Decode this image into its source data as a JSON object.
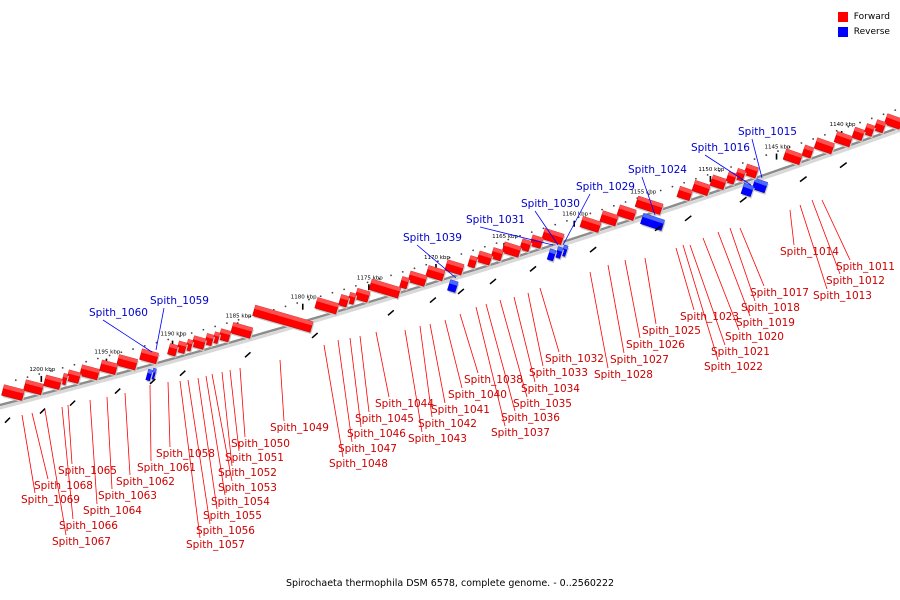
{
  "colors": {
    "forward": "#ff0000",
    "reverse": "#0000ff",
    "backbone": "#8c8c8c"
  },
  "legend": [
    {
      "label": "Forward",
      "color": "#ff0000"
    },
    {
      "label": "Reverse",
      "color": "#0000ff"
    }
  ],
  "caption": "Spirochaeta thermophila DSM 6578, complete genome. - 0..2560222",
  "ticks": [
    "1200 kbp",
    "1195 kbp",
    "1190 kbp",
    "1185 kbp",
    "1180 kbp",
    "1175 kbp",
    "1170 kbp",
    "1165 kbp",
    "1160 kbp",
    "1155 kbp",
    "1150 kbp",
    "1145 kbp",
    "1140 kbp"
  ],
  "genes": [
    {
      "name": "Spith_1011",
      "strand": "forward"
    },
    {
      "name": "Spith_1012",
      "strand": "forward"
    },
    {
      "name": "Spith_1013",
      "strand": "forward"
    },
    {
      "name": "Spith_1014",
      "strand": "forward"
    },
    {
      "name": "Spith_1015",
      "strand": "reverse"
    },
    {
      "name": "Spith_1016",
      "strand": "reverse"
    },
    {
      "name": "Spith_1017",
      "strand": "forward"
    },
    {
      "name": "Spith_1018",
      "strand": "forward"
    },
    {
      "name": "Spith_1019",
      "strand": "forward"
    },
    {
      "name": "Spith_1020",
      "strand": "forward"
    },
    {
      "name": "Spith_1021",
      "strand": "forward"
    },
    {
      "name": "Spith_1022",
      "strand": "forward"
    },
    {
      "name": "Spith_1023",
      "strand": "forward"
    },
    {
      "name": "Spith_1024",
      "strand": "reverse"
    },
    {
      "name": "Spith_1025",
      "strand": "forward"
    },
    {
      "name": "Spith_1026",
      "strand": "forward"
    },
    {
      "name": "Spith_1027",
      "strand": "forward"
    },
    {
      "name": "Spith_1028",
      "strand": "forward"
    },
    {
      "name": "Spith_1029",
      "strand": "reverse"
    },
    {
      "name": "Spith_1030",
      "strand": "reverse"
    },
    {
      "name": "Spith_1031",
      "strand": "reverse"
    },
    {
      "name": "Spith_1032",
      "strand": "forward"
    },
    {
      "name": "Spith_1033",
      "strand": "forward"
    },
    {
      "name": "Spith_1034",
      "strand": "forward"
    },
    {
      "name": "Spith_1035",
      "strand": "forward"
    },
    {
      "name": "Spith_1036",
      "strand": "forward"
    },
    {
      "name": "Spith_1037",
      "strand": "forward"
    },
    {
      "name": "Spith_1038",
      "strand": "forward"
    },
    {
      "name": "Spith_1039",
      "strand": "reverse"
    },
    {
      "name": "Spith_1040",
      "strand": "forward"
    },
    {
      "name": "Spith_1041",
      "strand": "forward"
    },
    {
      "name": "Spith_1042",
      "strand": "forward"
    },
    {
      "name": "Spith_1043",
      "strand": "forward"
    },
    {
      "name": "Spith_1044",
      "strand": "forward"
    },
    {
      "name": "Spith_1045",
      "strand": "forward"
    },
    {
      "name": "Spith_1046",
      "strand": "forward"
    },
    {
      "name": "Spith_1047",
      "strand": "forward"
    },
    {
      "name": "Spith_1048",
      "strand": "forward"
    },
    {
      "name": "Spith_1049",
      "strand": "forward"
    },
    {
      "name": "Spith_1050",
      "strand": "forward"
    },
    {
      "name": "Spith_1051",
      "strand": "forward"
    },
    {
      "name": "Spith_1052",
      "strand": "forward"
    },
    {
      "name": "Spith_1053",
      "strand": "forward"
    },
    {
      "name": "Spith_1054",
      "strand": "forward"
    },
    {
      "name": "Spith_1055",
      "strand": "forward"
    },
    {
      "name": "Spith_1056",
      "strand": "forward"
    },
    {
      "name": "Spith_1057",
      "strand": "forward"
    },
    {
      "name": "Spith_1058",
      "strand": "forward"
    },
    {
      "name": "Spith_1059",
      "strand": "reverse"
    },
    {
      "name": "Spith_1060",
      "strand": "reverse"
    },
    {
      "name": "Spith_1061",
      "strand": "forward"
    },
    {
      "name": "Spith_1062",
      "strand": "forward"
    },
    {
      "name": "Spith_1063",
      "strand": "forward"
    },
    {
      "name": "Spith_1064",
      "strand": "forward"
    },
    {
      "name": "Spith_1065",
      "strand": "forward"
    },
    {
      "name": "Spith_1066",
      "strand": "forward"
    },
    {
      "name": "Spith_1067",
      "strand": "forward"
    },
    {
      "name": "Spith_1068",
      "strand": "forward"
    },
    {
      "name": "Spith_1069",
      "strand": "forward"
    }
  ]
}
